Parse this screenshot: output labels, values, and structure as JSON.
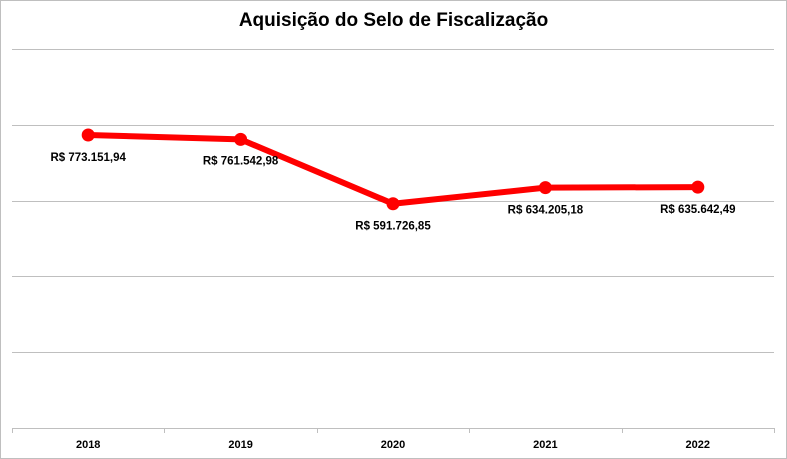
{
  "chart_data": {
    "type": "line",
    "title": "Aquisição do Selo de Fiscalização",
    "categories": [
      "2018",
      "2019",
      "2020",
      "2021",
      "2022"
    ],
    "series": [
      {
        "values": [
          773151.94,
          761542.98,
          591726.85,
          634205.18,
          635642.49
        ],
        "labels": [
          "R$ 773.151,94",
          "R$ 761.542,98",
          "R$ 591.726,85",
          "R$ 634.205,18",
          "R$ 635.642,49"
        ],
        "color": "#ff0000"
      }
    ],
    "ylim": [
      0,
      1000000
    ],
    "grid": true,
    "legend": "none",
    "gridline_color": "#bfbfbf"
  }
}
